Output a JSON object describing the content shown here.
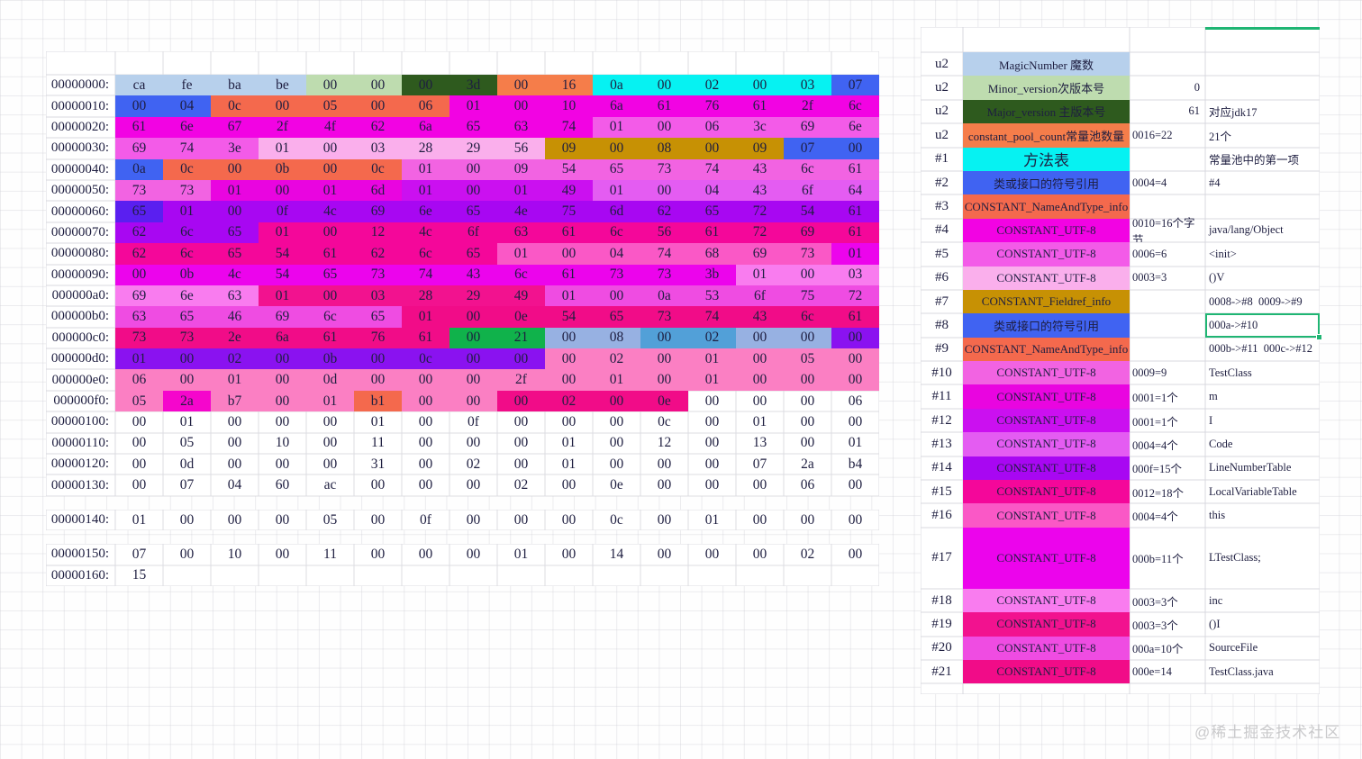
{
  "palette": {
    "LB": "#B7D0EC",
    "LG": "#BEDCAF",
    "DG": "#2E5A1E",
    "OR": "#F57D4A",
    "TM": "#F4694D",
    "CY": "#06F2F2",
    "BL": "#4063F2",
    "M4": "#F203E3",
    "M5": "#F35BE8",
    "P6": "#FAAFEC",
    "GD": "#C79104",
    "V10": "#F263E2",
    "M11": "#E905E0",
    "M12": "#CB10F0",
    "V13": "#E45CF2",
    "BV": "#5A1FF0",
    "PU": "#A807F2",
    "D15": "#F4079A",
    "H16": "#FA58C6",
    "M17": "#EC04EC",
    "L18": "#F97CEF",
    "D19": "#F2128F",
    "V20": "#EF4CE2",
    "D21": "#F10C88",
    "GR": "#10B24B",
    "PB": "#97B1E2",
    "MB": "#52A0D8",
    "PR": "#8A12F0",
    "PK": "#FB7FC3",
    "MG": "#F506CC"
  },
  "accent_green": "#1fb573",
  "hex_table": {
    "rows": [
      {
        "addr": "00000000:",
        "bytes": "ca fe ba be 00 00 00 3d 00 16 0a 00 02 00 03 07",
        "colors": "LB LB LB LB LG LG DG DG OR OR CY CY CY CY CY BL"
      },
      {
        "addr": "00000010:",
        "bytes": "00 04 0c 00 05 00 06 01 00 10 6a 61 76 61 2f 6c",
        "colors": "BL BL TM TM TM TM TM M4 M4 M4 M4 M4 M4 M4 M4 M4"
      },
      {
        "addr": "00000020:",
        "bytes": "61 6e 67 2f 4f 62 6a 65 63 74 01 00 06 3c 69 6e",
        "colors": "M4 M4 M4 M4 M4 M4 M4 M4 M4 M4 M5 M5 M5 M5 M5 M5"
      },
      {
        "addr": "00000030:",
        "bytes": "69 74 3e 01 00 03 28 29 56 09 00 08 00 09 07 00",
        "colors": "M5 M5 M5 P6 P6 P6 P6 P6 P6 GD GD GD GD GD BL BL"
      },
      {
        "addr": "00000040:",
        "bytes": "0a 0c 00 0b 00 0c 01 00 09 54 65 73 74 43 6c 61",
        "colors": "BL TM TM TM TM TM V10 V10 V10 V10 V10 V10 V10 V10 V10 V10"
      },
      {
        "addr": "00000050:",
        "bytes": "73 73 01 00 01 6d 01 00 01 49 01 00 04 43 6f 64",
        "colors": "V10 V10 M11 M11 M11 M11 M12 M12 M12 M12 V13 V13 V13 V13 V13 V13"
      },
      {
        "addr": "00000060:",
        "bytes": "65 01 00 0f 4c 69 6e 65 4e 75 6d 62 65 72 54 61",
        "colors": "BV PU PU PU PU PU PU PU PU PU PU PU PU PU PU PU"
      },
      {
        "addr": "00000070:",
        "bytes": "62 6c 65 01 00 12 4c 6f 63 61 6c 56 61 72 69 61",
        "colors": "PU PU PU D15 D15 D15 D15 D15 D15 D15 D15 D15 D15 D15 D15 D15"
      },
      {
        "addr": "00000080:",
        "bytes": "62 6c 65 54 61 62 6c 65 01 00 04 74 68 69 73 01",
        "colors": "D15 D15 D15 D15 D15 D15 D15 D15 H16 H16 H16 H16 H16 H16 H16 M17"
      },
      {
        "addr": "00000090:",
        "bytes": "00 0b 4c 54 65 73 74 43 6c 61 73 73 3b 01 00 03",
        "colors": "M17 M17 M17 M17 M17 M17 M17 M17 M17 M17 M17 M17 M17 L18 L18 L18"
      },
      {
        "addr": "000000a0:",
        "bytes": "69 6e 63 01 00 03 28 29 49 01 00 0a 53 6f 75 72",
        "colors": "L18 L18 L18 D19 D19 D19 D19 D19 D19 V20 V20 V20 V20 V20 V20 V20"
      },
      {
        "addr": "000000b0:",
        "bytes": "63 65 46 69 6c 65 01 00 0e 54 65 73 74 43 6c 61",
        "colors": "V20 V20 V20 V20 V20 V20 D21 D21 D21 D21 D21 D21 D21 D21 D21 D21"
      },
      {
        "addr": "000000c0:",
        "bytes": "73 73 2e 6a 61 76 61 00 21 00 08 00 02 00 00 00",
        "colors": "D21 D21 D21 D21 D21 D21 D21 GR GR PB PB MB MB PB PB PR"
      },
      {
        "addr": "000000d0:",
        "bytes": "01 00 02 00 0b 00 0c 00 00 00 02 00 01 00 05 00",
        "colors": "PR PR PR PR PR PR PR PR PR PK PK PK PK PK PK PK"
      },
      {
        "addr": "000000e0:",
        "bytes": "06 00 01 00 0d 00 00 00 2f 00 01 00 01 00 00 00",
        "colors": "PK PK PK PK PK PK PK PK PK PK PK PK PK PK PK PK"
      },
      {
        "addr": "000000f0:",
        "bytes": "05 2a b7 00 01 b1 00 00 00 02 00 0e 00 00 00 06",
        "colors": "PK MG PK PK PK TM PK PK D21 D21 D21 D21 - - - -"
      },
      {
        "addr": "00000100:",
        "bytes": "00 01 00 00 00 01 00 0f 00 00 00 0c 00 01 00 00",
        "colors": "- - - - - - - - - - - - - - - -"
      },
      {
        "addr": "00000110:",
        "bytes": "00 05 00 10 00 11 00 00 00 01 00 12 00 13 00 01",
        "colors": "- - - - - - - - - - - - - - - -"
      },
      {
        "addr": "00000120:",
        "bytes": "00 0d 00 00 00 31 00 02 00 01 00 00 00 07 2a b4",
        "colors": "- - - - - - - - - - - - - - - -"
      },
      {
        "addr": "00000130:",
        "bytes": "00 07 04 60 ac 00 00 00 02 00 0e 00 00 00 06 00",
        "colors": "- - - - - - - - - - - - - - - -"
      },
      {
        "addr": "00000140:",
        "gap_before": true,
        "bytes": "01 00 00 00 05 00 0f 00 00 00 0c 00 01 00 00 00",
        "colors": "- - - - - - - - - - - - - - - -"
      },
      {
        "addr": "00000150:",
        "gap_before": true,
        "bytes": "07 00 10 00 11 00 00 00 01 00 14 00 00 00 02 00",
        "colors": "- - - - - - - - - - - - - - - -"
      },
      {
        "addr": "00000160:",
        "bytes": "15 _ _ _ _ _ _ _ _ _ _ _ _ _ _ _",
        "colors": "- - - - - - - - - - - - - - - -"
      }
    ]
  },
  "pool_table": {
    "rows": [
      {
        "label": "u2",
        "name": "MagicNumber 魔数",
        "color": "LB",
        "value": "",
        "note": ""
      },
      {
        "label": "u2",
        "name": "Minor_version次版本号",
        "color": "LG",
        "value": "0",
        "va": "right",
        "note": ""
      },
      {
        "label": "u2",
        "name": "Major_version 主版本号",
        "color": "DG",
        "value": "61",
        "va": "right",
        "note": "对应jdk17"
      },
      {
        "label": "u2",
        "name": "constant_pool_count常量池数量",
        "color": "OR",
        "value": "0016=22",
        "note": "21个"
      },
      {
        "label": "#1",
        "name": "方法表",
        "color": "CY",
        "big": true,
        "value": "",
        "note": "常量池中的第一项"
      },
      {
        "label": "#2",
        "name": "类或接口的符号引用",
        "color": "BL",
        "value": "0004=4",
        "note": "#4"
      },
      {
        "label": "#3",
        "name": "CONSTANT_NameAndType_info",
        "color": "TM",
        "value": "",
        "note": ""
      },
      {
        "label": "#4",
        "name": "CONSTANT_UTF-8",
        "color": "M4",
        "value": "0010=16个字节",
        "note": "java/lang/Object"
      },
      {
        "label": "#5",
        "name": "CONSTANT_UTF-8",
        "color": "M5",
        "value": "0006=6",
        "note": "<init>"
      },
      {
        "label": "#6",
        "name": "CONSTANT_UTF-8",
        "color": "P6",
        "value": "0003=3",
        "note": "()V"
      },
      {
        "label": "#7",
        "name": "CONSTANT_Fieldref_info",
        "color": "GD",
        "value": "",
        "note": "0008->#8  0009->#9"
      },
      {
        "label": "#8",
        "name": "类或接口的符号引用",
        "color": "BL",
        "value": "",
        "note": "000a->#10",
        "selected": true
      },
      {
        "label": "#9",
        "name": "CONSTANT_NameAndType_info",
        "color": "TM",
        "value": "",
        "note": "000b->#11  000c->#12"
      },
      {
        "label": "#10",
        "name": "CONSTANT_UTF-8",
        "color": "V10",
        "value": "0009=9",
        "note": "TestClass"
      },
      {
        "label": "#11",
        "name": "CONSTANT_UTF-8",
        "color": "M11",
        "value": "0001=1个",
        "note": "m"
      },
      {
        "label": "#12",
        "name": "CONSTANT_UTF-8",
        "color": "M12",
        "value": "0001=1个",
        "note": "I"
      },
      {
        "label": "#13",
        "name": "CONSTANT_UTF-8",
        "color": "V13",
        "value": "0004=4个",
        "note": "Code"
      },
      {
        "label": "#14",
        "name": "CONSTANT_UTF-8",
        "color": "PU",
        "value": "000f=15个",
        "note": "LineNumberTable"
      },
      {
        "label": "#15",
        "name": "CONSTANT_UTF-8",
        "color": "D15",
        "value": "0012=18个",
        "note": "LocalVariableTable"
      },
      {
        "label": "#16",
        "name": "CONSTANT_UTF-8",
        "color": "H16",
        "value": "0004=4个",
        "note": "this"
      },
      {
        "label": "#17",
        "name": "CONSTANT_UTF-8",
        "color": "M17",
        "value": "000b=11个",
        "note": "LTestClass;",
        "tall": true
      },
      {
        "label": "#18",
        "name": "CONSTANT_UTF-8",
        "color": "L18",
        "value": "0003=3个",
        "note": "inc"
      },
      {
        "label": "#19",
        "name": "CONSTANT_UTF-8",
        "color": "D19",
        "value": "0003=3个",
        "note": "()I"
      },
      {
        "label": "#20",
        "name": "CONSTANT_UTF-8",
        "color": "V20",
        "value": "000a=10个",
        "note": "SourceFile"
      },
      {
        "label": "#21",
        "name": "CONSTANT_UTF-8",
        "color": "D21",
        "value": "000e=14",
        "note": "TestClass.java"
      }
    ]
  },
  "watermark": {
    "text": "@稀土掘金技术社区"
  }
}
